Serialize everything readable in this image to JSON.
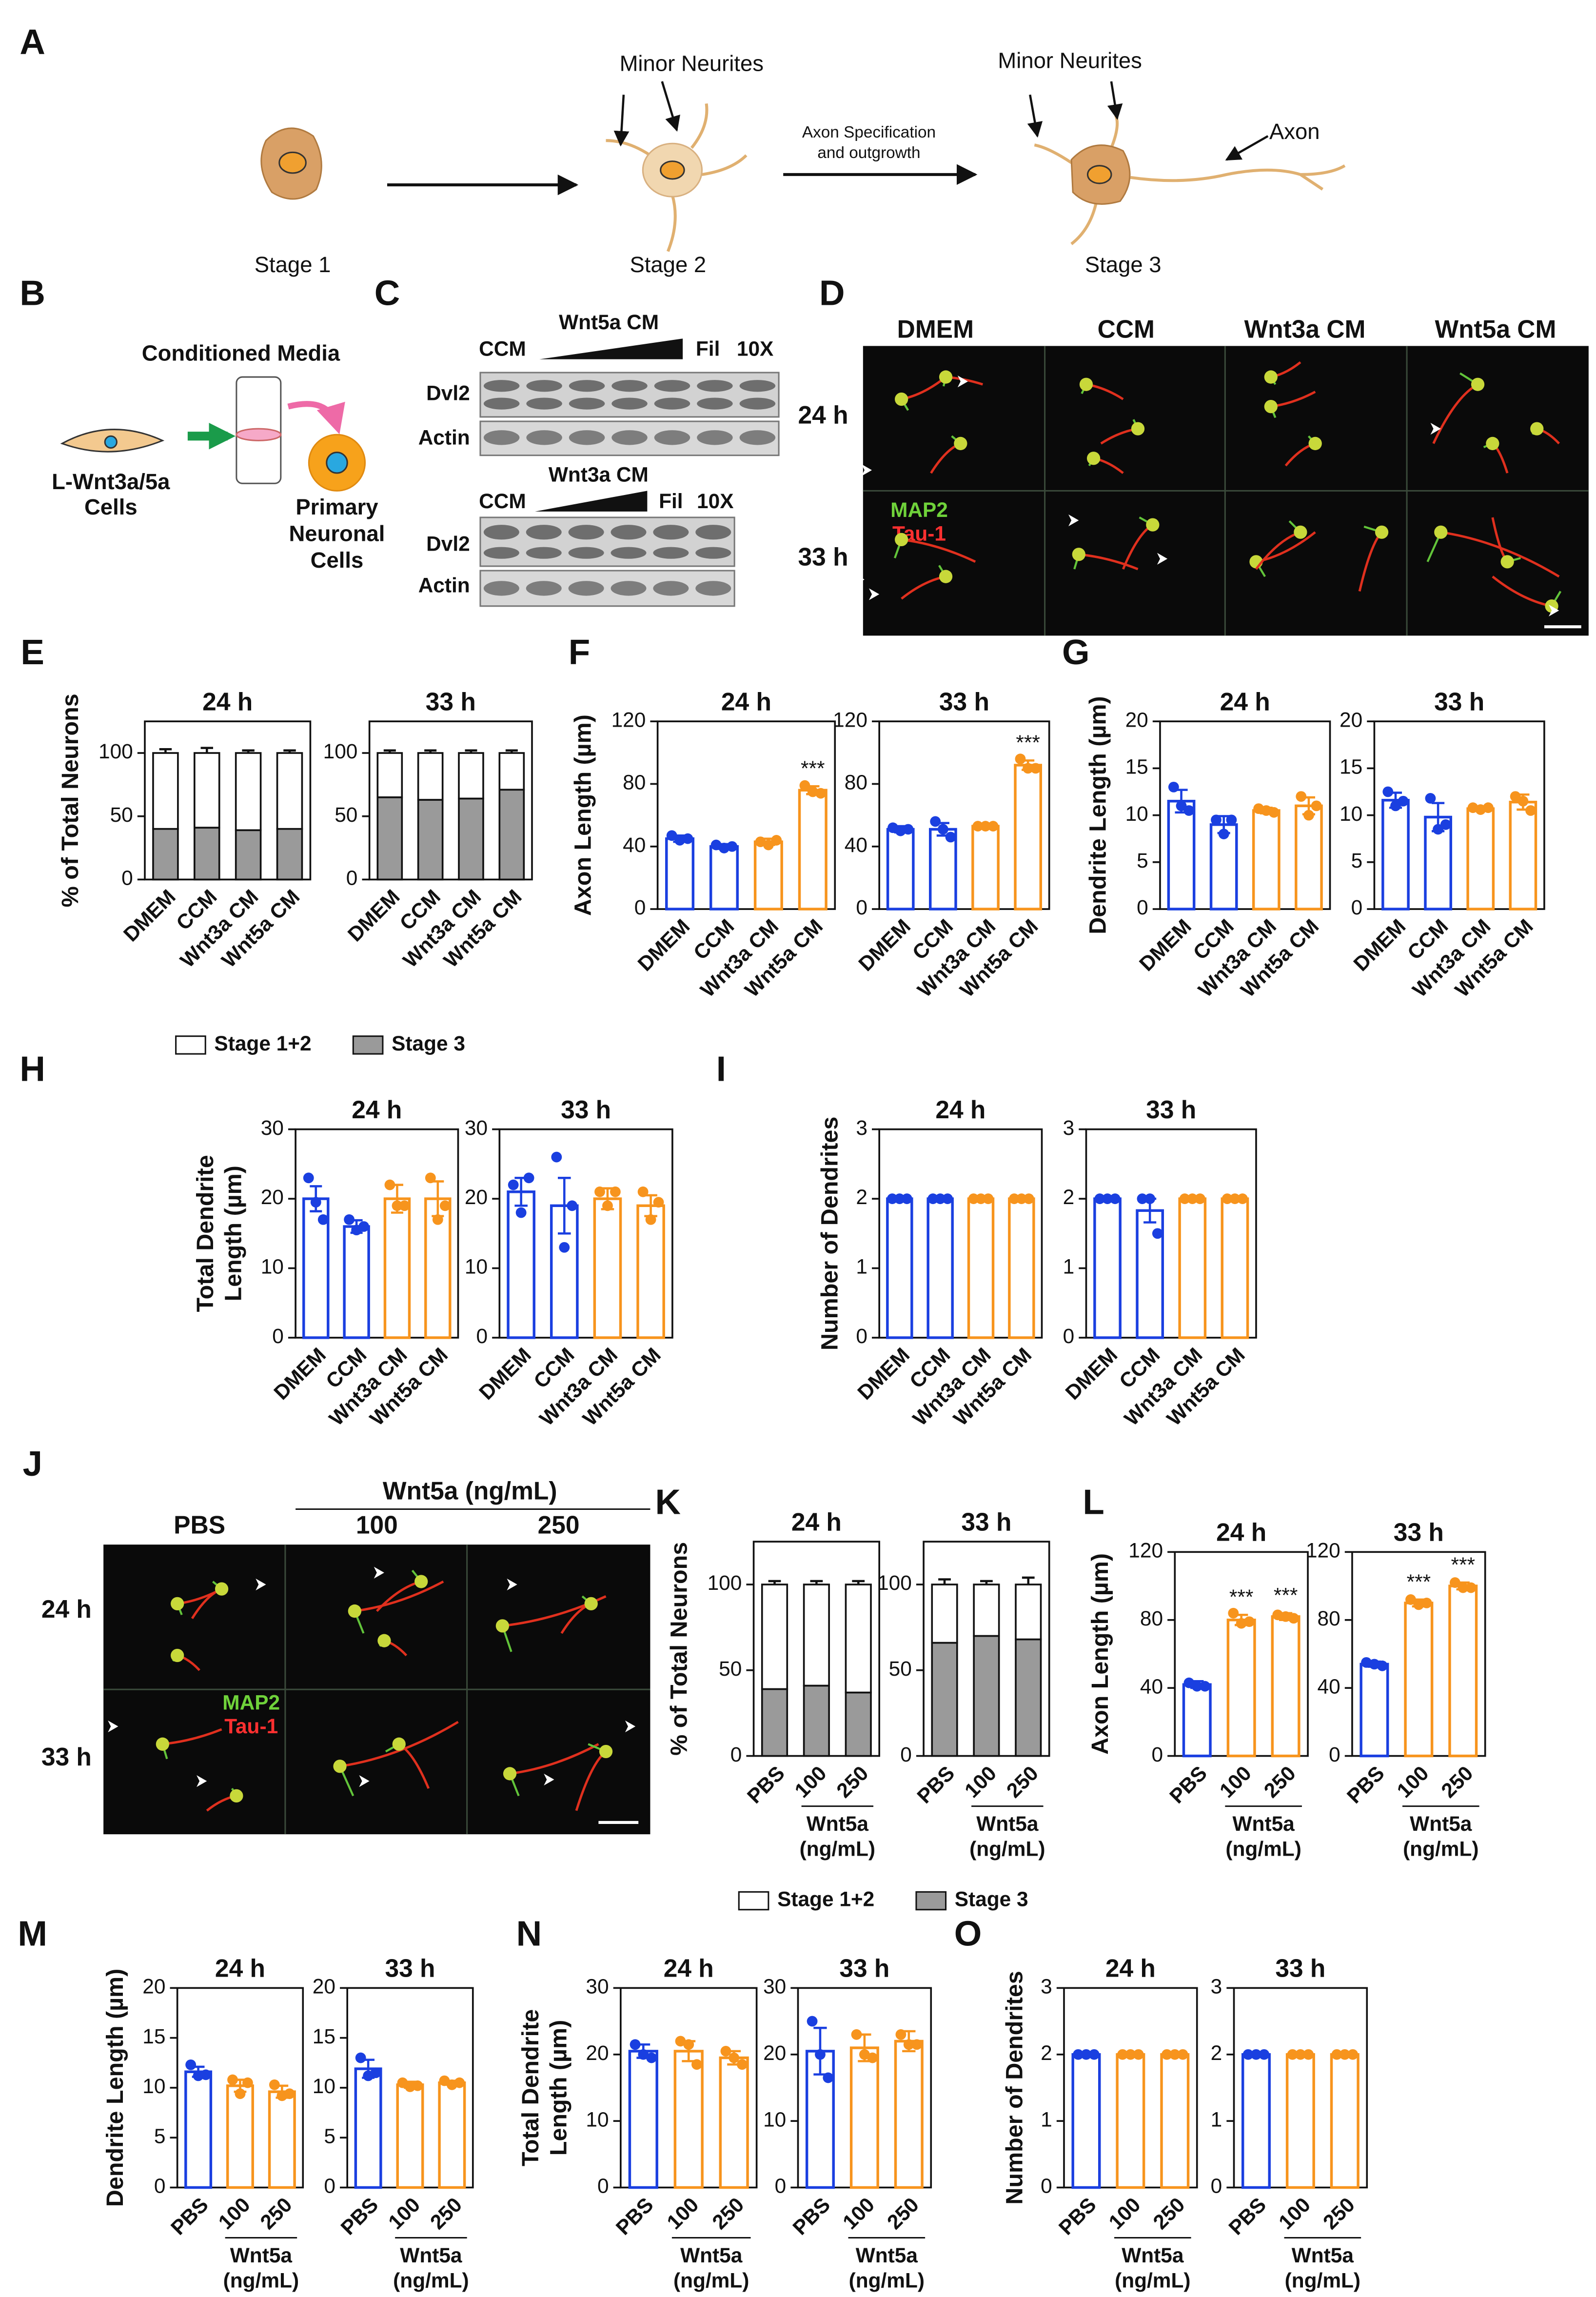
{
  "panel_labels": [
    "A",
    "B",
    "C",
    "D",
    "E",
    "F",
    "G",
    "H",
    "I",
    "J",
    "K",
    "L",
    "M",
    "N",
    "O"
  ],
  "panel_A": {
    "stages": [
      "Stage 1",
      "Stage 2",
      "Stage 3"
    ],
    "minor_neurites": [
      "Minor Neurites",
      "Minor Neurites"
    ],
    "axon_step": [
      "Axon Specification",
      "and outgrowth"
    ],
    "axon": "Axon"
  },
  "panel_B": {
    "title": "Conditioned Media",
    "source": [
      "L-Wnt3a/5a",
      "Cells"
    ],
    "target": [
      "Primary",
      "Neuronal",
      "Cells"
    ]
  },
  "panel_C": {
    "blots": [
      {
        "control": "CCM",
        "treatment": "Wnt5a CM",
        "filtered": "Fil",
        "concentrated": "10X",
        "rows": [
          "Dvl2",
          "Actin"
        ]
      },
      {
        "control": "CCM",
        "treatment": "Wnt3a CM",
        "filtered": "Fil",
        "concentrated": "10X",
        "rows": [
          "Dvl2",
          "Actin"
        ]
      }
    ]
  },
  "panel_D": {
    "columns": [
      "DMEM",
      "CCM",
      "Wnt3a CM",
      "Wnt5a CM"
    ],
    "rows": [
      "24 h",
      "33 h"
    ],
    "stains": [
      "MAP2",
      "Tau-1"
    ]
  },
  "panel_J": {
    "header": "Wnt5a (ng/mL)",
    "columns": [
      "PBS",
      "100",
      "250"
    ],
    "rows": [
      "24 h",
      "33 h"
    ],
    "stains": [
      "MAP2",
      "Tau-1"
    ]
  },
  "chart_data": [
    {
      "type": "stacked_bar",
      "title": "24 h",
      "ylabel": [
        "% of Total Neurons"
      ],
      "categories": [
        "DMEM",
        "CCM",
        "Wnt3a CM",
        "Wnt5a CM"
      ],
      "series": [
        {
          "name": "Stage 3",
          "color": "#9a9a9a",
          "values": [
            40,
            41,
            39,
            40
          ],
          "errors": [
            2,
            3,
            2,
            1.5
          ]
        },
        {
          "name": "Stage 1+2",
          "color": "#ffffff",
          "values": [
            60,
            59,
            61,
            60
          ],
          "errors": [
            3,
            4,
            2,
            2
          ]
        }
      ],
      "ylim": [
        0,
        125
      ],
      "yticks": [
        0,
        50,
        100
      ],
      "legend": "bottom"
    },
    {
      "type": "stacked_bar",
      "title": "33 h",
      "categories": [
        "DMEM",
        "CCM",
        "Wnt3a CM",
        "Wnt5a CM"
      ],
      "series": [
        {
          "name": "Stage 3",
          "color": "#9a9a9a",
          "values": [
            65,
            63,
            64,
            71
          ],
          "errors": [
            2,
            2,
            1,
            2
          ]
        },
        {
          "name": "Stage 1+2",
          "color": "#ffffff",
          "values": [
            35,
            37,
            36,
            29
          ],
          "errors": [
            2,
            2,
            2,
            2
          ]
        }
      ],
      "ylim": [
        0,
        125
      ],
      "yticks": [
        0,
        50,
        100
      ]
    },
    {
      "type": "bar",
      "title": "24 h",
      "ylabel": [
        "Axon Length (µm)"
      ],
      "categories": [
        "DMEM",
        "CCM",
        "Wnt3a CM",
        "Wnt5a CM"
      ],
      "colors": [
        "#1a3fe0",
        "#1a3fe0",
        "#f7941d",
        "#f7941d"
      ],
      "values": [
        45,
        40,
        43,
        76
      ],
      "errors": [
        2,
        1.5,
        2,
        2.5
      ],
      "points": [
        [
          47,
          44,
          45
        ],
        [
          41,
          39,
          40
        ],
        [
          43,
          41,
          44
        ],
        [
          79,
          75,
          74
        ]
      ],
      "significance": [
        null,
        null,
        null,
        "***"
      ],
      "ylim": [
        0,
        120
      ],
      "yticks": [
        0,
        40,
        80,
        120
      ]
    },
    {
      "type": "bar",
      "title": "33 h",
      "categories": [
        "DMEM",
        "CCM",
        "Wnt3a CM",
        "Wnt5a CM"
      ],
      "colors": [
        "#1a3fe0",
        "#1a3fe0",
        "#f7941d",
        "#f7941d"
      ],
      "values": [
        51,
        51,
        53,
        92
      ],
      "errors": [
        2,
        4,
        1,
        3
      ],
      "points": [
        [
          52,
          50,
          51
        ],
        [
          56,
          51,
          46
        ],
        [
          53,
          53,
          53
        ],
        [
          96,
          90,
          90
        ]
      ],
      "significance": [
        null,
        null,
        null,
        "***"
      ],
      "ylim": [
        0,
        120
      ],
      "yticks": [
        0,
        40,
        80,
        120
      ]
    },
    {
      "type": "bar",
      "title": "24 h",
      "ylabel": [
        "Dendrite Length (µm)"
      ],
      "categories": [
        "DMEM",
        "CCM",
        "Wnt3a CM",
        "Wnt5a CM"
      ],
      "colors": [
        "#1a3fe0",
        "#1a3fe0",
        "#f7941d",
        "#f7941d"
      ],
      "values": [
        11.5,
        9,
        10.5,
        11
      ],
      "errors": [
        1.2,
        0.9,
        0.3,
        0.9
      ],
      "points": [
        [
          13,
          11,
          10.5
        ],
        [
          9.5,
          8,
          9.5
        ],
        [
          10.7,
          10.5,
          10.3
        ],
        [
          12,
          10,
          11
        ]
      ],
      "ylim": [
        0,
        20
      ],
      "yticks": [
        0,
        5,
        10,
        15,
        20
      ]
    },
    {
      "type": "bar",
      "title": "33 h",
      "categories": [
        "DMEM",
        "CCM",
        "Wnt3a CM",
        "Wnt5a CM"
      ],
      "colors": [
        "#1a3fe0",
        "#1a3fe0",
        "#f7941d",
        "#f7941d"
      ],
      "values": [
        11.6,
        9.8,
        10.7,
        11.4
      ],
      "errors": [
        0.8,
        1.5,
        0.2,
        0.8
      ],
      "points": [
        [
          12.5,
          11,
          11.5
        ],
        [
          11.8,
          8.5,
          9
        ],
        [
          10.8,
          10.6,
          10.8
        ],
        [
          12,
          11.5,
          10.5
        ]
      ],
      "ylim": [
        0,
        20
      ],
      "yticks": [
        0,
        5,
        10,
        15,
        20
      ]
    },
    {
      "type": "bar",
      "title": "24 h",
      "ylabel": [
        "Total Dendrite",
        "Length (µm)"
      ],
      "categories": [
        "DMEM",
        "CCM",
        "Wnt3a CM",
        "Wnt5a CM"
      ],
      "colors": [
        "#1a3fe0",
        "#1a3fe0",
        "#f7941d",
        "#f7941d"
      ],
      "values": [
        20,
        16,
        20,
        20
      ],
      "errors": [
        1.8,
        0.9,
        2,
        2.5
      ],
      "points": [
        [
          23,
          19.5,
          17
        ],
        [
          17,
          15.5,
          16
        ],
        [
          22,
          19,
          19
        ],
        [
          23,
          17,
          19
        ]
      ],
      "ylim": [
        0,
        30
      ],
      "yticks": [
        0,
        10,
        20,
        30
      ]
    },
    {
      "type": "bar",
      "title": "33 h",
      "categories": [
        "DMEM",
        "CCM",
        "Wnt3a CM",
        "Wnt5a CM"
      ],
      "colors": [
        "#1a3fe0",
        "#1a3fe0",
        "#f7941d",
        "#f7941d"
      ],
      "values": [
        21,
        19,
        20,
        19
      ],
      "errors": [
        2,
        4,
        1.5,
        1.5
      ],
      "points": [
        [
          22,
          18,
          23
        ],
        [
          26,
          13,
          19
        ],
        [
          21,
          19,
          21
        ],
        [
          21,
          17,
          19.5
        ]
      ],
      "ylim": [
        0,
        30
      ],
      "yticks": [
        0,
        10,
        20,
        30
      ]
    },
    {
      "type": "bar",
      "title": "24 h",
      "ylabel": [
        "Number of Dendrites"
      ],
      "categories": [
        "DMEM",
        "CCM",
        "Wnt3a CM",
        "Wnt5a CM"
      ],
      "colors": [
        "#1a3fe0",
        "#1a3fe0",
        "#f7941d",
        "#f7941d"
      ],
      "values": [
        2,
        2,
        2,
        2
      ],
      "errors": [
        0,
        0,
        0,
        0
      ],
      "points": [
        [
          2,
          2,
          2
        ],
        [
          2,
          2,
          2
        ],
        [
          2,
          2,
          2
        ],
        [
          2,
          2,
          2
        ]
      ],
      "ylim": [
        0,
        3
      ],
      "yticks": [
        0,
        1,
        2,
        3
      ]
    },
    {
      "type": "bar",
      "title": "33 h",
      "categories": [
        "DMEM",
        "CCM",
        "Wnt3a CM",
        "Wnt5a CM"
      ],
      "colors": [
        "#1a3fe0",
        "#1a3fe0",
        "#f7941d",
        "#f7941d"
      ],
      "values": [
        2,
        1.83,
        2,
        2
      ],
      "errors": [
        0,
        0.17,
        0,
        0
      ],
      "points": [
        [
          2,
          2,
          2
        ],
        [
          2,
          2,
          1.5
        ],
        [
          2,
          2,
          2
        ],
        [
          2,
          2,
          2
        ]
      ],
      "ylim": [
        0,
        3
      ],
      "yticks": [
        0,
        1,
        2,
        3
      ]
    },
    {
      "type": "stacked_bar",
      "title": "24 h",
      "ylabel": [
        "% of Total Neurons"
      ],
      "categories": [
        "PBS",
        "100",
        "250"
      ],
      "group_label": [
        "Wnt5a",
        "(ng/mL)"
      ],
      "series": [
        {
          "name": "Stage 3",
          "color": "#9a9a9a",
          "values": [
            39,
            41,
            37
          ],
          "errors": [
            2,
            2,
            1.5
          ]
        },
        {
          "name": "Stage 1+2",
          "color": "#ffffff",
          "values": [
            61,
            59,
            63
          ],
          "errors": [
            2,
            2,
            2
          ]
        }
      ],
      "ylim": [
        0,
        125
      ],
      "yticks": [
        0,
        50,
        100
      ],
      "legend": "bottom"
    },
    {
      "type": "stacked_bar",
      "title": "33 h",
      "categories": [
        "PBS",
        "100",
        "250"
      ],
      "group_label": [
        "Wnt5a",
        "(ng/mL)"
      ],
      "series": [
        {
          "name": "Stage 3",
          "color": "#9a9a9a",
          "values": [
            66,
            70,
            68
          ],
          "errors": [
            2,
            1.5,
            3
          ]
        },
        {
          "name": "Stage 1+2",
          "color": "#ffffff",
          "values": [
            34,
            30,
            32
          ],
          "errors": [
            3,
            2,
            4
          ]
        }
      ],
      "ylim": [
        0,
        125
      ],
      "yticks": [
        0,
        50,
        100
      ]
    },
    {
      "type": "bar",
      "title": "24 h",
      "ylabel": [
        "Axon Length (µm)"
      ],
      "categories": [
        "PBS",
        "100",
        "250"
      ],
      "group_label": [
        "Wnt5a",
        "(ng/mL)"
      ],
      "colors": [
        "#1a3fe0",
        "#f7941d",
        "#f7941d"
      ],
      "values": [
        42,
        80,
        82
      ],
      "errors": [
        2,
        3,
        2
      ],
      "points": [
        [
          43,
          41,
          41
        ],
        [
          84,
          78,
          79
        ],
        [
          83,
          82,
          81
        ]
      ],
      "significance": [
        null,
        "***",
        "***"
      ],
      "ylim": [
        0,
        120
      ],
      "yticks": [
        0,
        40,
        80,
        120
      ]
    },
    {
      "type": "bar",
      "title": "33 h",
      "categories": [
        "PBS",
        "100",
        "250"
      ],
      "group_label": [
        "Wnt5a",
        "(ng/mL)"
      ],
      "colors": [
        "#1a3fe0",
        "#f7941d",
        "#f7941d"
      ],
      "values": [
        54,
        90,
        100
      ],
      "errors": [
        1.5,
        2,
        2
      ],
      "points": [
        [
          55,
          54,
          53
        ],
        [
          92,
          89,
          90
        ],
        [
          102,
          99,
          99
        ]
      ],
      "significance": [
        null,
        "***",
        "***"
      ],
      "ylim": [
        0,
        120
      ],
      "yticks": [
        0,
        40,
        80,
        120
      ]
    },
    {
      "type": "bar",
      "title": "24 h",
      "ylabel": [
        "Dendrite Length (µm)"
      ],
      "categories": [
        "PBS",
        "100",
        "250"
      ],
      "group_label": [
        "Wnt5a",
        "(ng/mL)"
      ],
      "colors": [
        "#1a3fe0",
        "#f7941d",
        "#f7941d"
      ],
      "values": [
        11.6,
        10.2,
        9.6
      ],
      "errors": [
        0.5,
        0.6,
        0.6
      ],
      "points": [
        [
          12.3,
          11.2,
          11.3
        ],
        [
          10.8,
          9.4,
          10.5
        ],
        [
          10.3,
          9.2,
          9.4
        ]
      ],
      "ylim": [
        0,
        20
      ],
      "yticks": [
        0,
        5,
        10,
        15,
        20
      ]
    },
    {
      "type": "bar",
      "title": "33 h",
      "categories": [
        "PBS",
        "100",
        "250"
      ],
      "group_label": [
        "Wnt5a",
        "(ng/mL)"
      ],
      "colors": [
        "#1a3fe0",
        "#f7941d",
        "#f7941d"
      ],
      "values": [
        11.9,
        10.3,
        10.5
      ],
      "errors": [
        0.9,
        0.3,
        0.2
      ],
      "points": [
        [
          13,
          11.2,
          11.5
        ],
        [
          10.5,
          10.1,
          10.2
        ],
        [
          10.7,
          10.3,
          10.5
        ]
      ],
      "ylim": [
        0,
        20
      ],
      "yticks": [
        0,
        5,
        10,
        15,
        20
      ]
    },
    {
      "type": "bar",
      "title": "24 h",
      "ylabel": [
        "Total Dendrite",
        "Length (µm)"
      ],
      "categories": [
        "PBS",
        "100",
        "250"
      ],
      "group_label": [
        "Wnt5a",
        "(ng/mL)"
      ],
      "colors": [
        "#1a3fe0",
        "#f7941d",
        "#f7941d"
      ],
      "values": [
        20.5,
        20.5,
        19.5
      ],
      "errors": [
        1,
        1.5,
        1
      ],
      "points": [
        [
          21.5,
          20,
          19.5
        ],
        [
          22,
          21.5,
          18.5
        ],
        [
          20.5,
          19.5,
          18.5
        ]
      ],
      "ylim": [
        0,
        30
      ],
      "yticks": [
        0,
        10,
        20,
        30
      ]
    },
    {
      "type": "bar",
      "title": "33 h",
      "categories": [
        "PBS",
        "100",
        "250"
      ],
      "group_label": [
        "Wnt5a",
        "(ng/mL)"
      ],
      "colors": [
        "#1a3fe0",
        "#f7941d",
        "#f7941d"
      ],
      "values": [
        20.5,
        21,
        22
      ],
      "errors": [
        3.5,
        2,
        1.5
      ],
      "points": [
        [
          25,
          20,
          16.5
        ],
        [
          23,
          20,
          19.5
        ],
        [
          23,
          21.5,
          21.5
        ]
      ],
      "ylim": [
        0,
        30
      ],
      "yticks": [
        0,
        10,
        20,
        30
      ]
    },
    {
      "type": "bar",
      "title": "24 h",
      "ylabel": [
        "Number of Dendrites"
      ],
      "categories": [
        "PBS",
        "100",
        "250"
      ],
      "group_label": [
        "Wnt5a",
        "(ng/mL)"
      ],
      "colors": [
        "#1a3fe0",
        "#f7941d",
        "#f7941d"
      ],
      "values": [
        2,
        2,
        2
      ],
      "errors": [
        0,
        0,
        0
      ],
      "points": [
        [
          2,
          2,
          2
        ],
        [
          2,
          2,
          2
        ],
        [
          2,
          2,
          2
        ]
      ],
      "ylim": [
        0,
        3
      ],
      "yticks": [
        0,
        1,
        2,
        3
      ]
    },
    {
      "type": "bar",
      "title": "33 h",
      "categories": [
        "PBS",
        "100",
        "250"
      ],
      "group_label": [
        "Wnt5a",
        "(ng/mL)"
      ],
      "colors": [
        "#1a3fe0",
        "#f7941d",
        "#f7941d"
      ],
      "values": [
        2,
        2,
        2
      ],
      "errors": [
        0,
        0,
        0
      ],
      "points": [
        [
          2,
          2,
          2
        ],
        [
          2,
          2,
          2
        ],
        [
          2,
          2,
          2
        ]
      ],
      "ylim": [
        0,
        3
      ],
      "yticks": [
        0,
        1,
        2,
        3
      ]
    }
  ]
}
